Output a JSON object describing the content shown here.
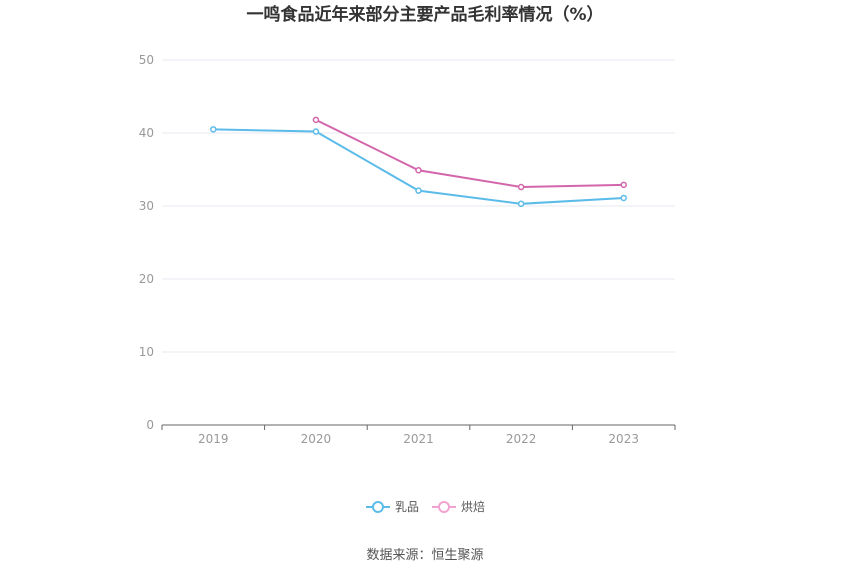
{
  "chart_data": {
    "type": "line",
    "title": "一鸣食品近年来部分主要产品毛利率情况（%）",
    "xlabel": "",
    "ylabel": "",
    "categories": [
      "2019",
      "2020",
      "2021",
      "2022",
      "2023"
    ],
    "ylim": [
      0,
      50
    ],
    "yticks": [
      0,
      10,
      20,
      30,
      40,
      50
    ],
    "grid": true,
    "legend_position": "bottom",
    "series": [
      {
        "name": "乳品",
        "color": "#5bbbe9",
        "values": [
          40.5,
          40.2,
          32.1,
          30.3,
          31.1
        ]
      },
      {
        "name": "烘焙",
        "color": "#d366ab",
        "legend_color": "#f0a3cf",
        "values": [
          null,
          41.8,
          34.9,
          32.6,
          32.9
        ]
      }
    ],
    "source": "数据来源：恒生聚源"
  }
}
